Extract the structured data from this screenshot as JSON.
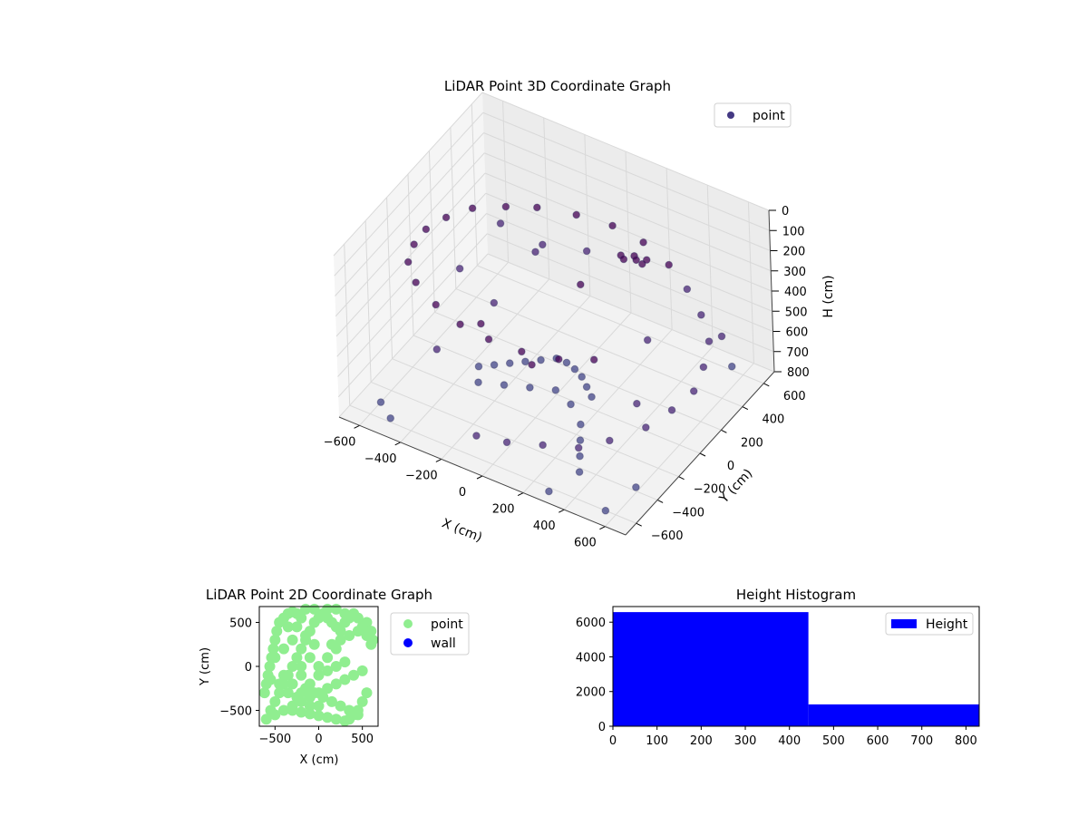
{
  "chart_data": [
    {
      "type": "scatter",
      "projection": "3d",
      "title": "LiDAR Point 3D Coordinate Graph",
      "xlabel": "X (cm)",
      "ylabel": "Y (cm)",
      "zlabel": "H (cm)",
      "xlim": [
        -700,
        700
      ],
      "ylim": [
        -700,
        700
      ],
      "zlim": [
        800,
        0
      ],
      "xticks": [
        "−600",
        "−400",
        "−200",
        "0",
        "200",
        "400",
        "600"
      ],
      "yticks": [
        "−600",
        "−400",
        "−200",
        "0",
        "200",
        "400",
        "600"
      ],
      "zticks": [
        "0",
        "100",
        "200",
        "300",
        "400",
        "500",
        "600",
        "700",
        "800"
      ],
      "grid": true,
      "legend": {
        "position": "top-right",
        "entries": [
          {
            "label": "point",
            "color": "#443983"
          }
        ]
      },
      "colormap": "viridis",
      "series": [
        {
          "name": "point",
          "description_points": "spiral ramp from H≈700 to H≈180 around centre, dense cluster near H≈700, sparse scatter",
          "points": [
            [
              -300,
              -150,
              700
            ],
            [
              -250,
              -100,
              700
            ],
            [
              -200,
              -50,
              700
            ],
            [
              -150,
              0,
              700
            ],
            [
              -100,
              50,
              700
            ],
            [
              -50,
              100,
              700
            ],
            [
              0,
              100,
              700
            ],
            [
              50,
              80,
              700
            ],
            [
              100,
              50,
              700
            ],
            [
              150,
              0,
              700
            ],
            [
              200,
              -50,
              700
            ],
            [
              -250,
              -250,
              700
            ],
            [
              -150,
              -200,
              700
            ],
            [
              -50,
              -150,
              700
            ],
            [
              50,
              -100,
              700
            ],
            [
              150,
              -150,
              700
            ],
            [
              250,
              -250,
              700
            ],
            [
              300,
              -350,
              700
            ],
            [
              350,
              -450,
              700
            ],
            [
              400,
              -550,
              700
            ],
            [
              -50,
              -650,
              650
            ],
            [
              100,
              -650,
              620
            ],
            [
              250,
              -600,
              600
            ],
            [
              400,
              -550,
              580
            ],
            [
              500,
              -450,
              560
            ],
            [
              600,
              -300,
              540
            ],
            [
              650,
              -150,
              520
            ],
            [
              680,
              0,
              500
            ],
            [
              650,
              150,
              480
            ],
            [
              600,
              300,
              460
            ],
            [
              500,
              420,
              440
            ],
            [
              380,
              520,
              420
            ],
            [
              250,
              600,
              400
            ],
            [
              100,
              650,
              380
            ],
            [
              -50,
              650,
              360
            ],
            [
              -200,
              600,
              340
            ],
            [
              -350,
              520,
              320
            ],
            [
              -450,
              420,
              300
            ],
            [
              -550,
              300,
              280
            ],
            [
              -600,
              150,
              260
            ],
            [
              -620,
              0,
              240
            ],
            [
              -600,
              -150,
              220
            ],
            [
              -550,
              -300,
              200
            ],
            [
              -450,
              -420,
              190
            ],
            [
              -300,
              -520,
              180
            ],
            [
              -150,
              -580,
              180
            ],
            [
              0,
              -600,
              180
            ],
            [
              150,
              -580,
              190
            ],
            [
              300,
              -520,
              200
            ],
            [
              420,
              -420,
              210
            ],
            [
              150,
              350,
              250
            ],
            [
              200,
              380,
              250
            ],
            [
              250,
              400,
              260
            ],
            [
              180,
              320,
              240
            ],
            [
              220,
              360,
              250
            ],
            [
              -600,
              -500,
              800
            ],
            [
              -500,
              -600,
              780
            ],
            [
              600,
              500,
              700
            ],
            [
              500,
              600,
              650
            ],
            [
              -400,
              650,
              600
            ],
            [
              -650,
              350,
              650
            ],
            [
              300,
              -650,
              780
            ],
            [
              650,
              -500,
              700
            ],
            [
              -550,
              550,
              500
            ],
            [
              550,
              -600,
              800
            ],
            [
              -300,
              400,
              450
            ],
            [
              -100,
              500,
              420
            ],
            [
              100,
              -400,
              380
            ],
            [
              -200,
              -300,
              360
            ],
            [
              350,
              200,
              500
            ],
            [
              -350,
              100,
              550
            ],
            [
              450,
              -100,
              600
            ],
            [
              -450,
              -250,
              620
            ],
            [
              200,
              450,
              330
            ],
            [
              0,
              250,
              400
            ]
          ]
        }
      ]
    },
    {
      "type": "scatter",
      "title": "LiDAR Point 2D Coordinate Graph",
      "xlabel": "X (cm)",
      "ylabel": "Y (cm)",
      "xlim": [
        -680,
        680
      ],
      "ylim": [
        -680,
        680
      ],
      "xticks": [
        "−500",
        "0",
        "500"
      ],
      "yticks": [
        "−500",
        "0",
        "500"
      ],
      "legend": {
        "position": "right",
        "entries": [
          {
            "label": "point",
            "color": "#90ee90"
          },
          {
            "label": "wall",
            "color": "#0000ff"
          }
        ]
      },
      "series": [
        {
          "name": "point",
          "color": "#90ee90",
          "points": [
            [
              -600,
              -600
            ],
            [
              -550,
              -500
            ],
            [
              -500,
              -400
            ],
            [
              -450,
              -300
            ],
            [
              -400,
              -200
            ],
            [
              -350,
              -100
            ],
            [
              -300,
              0
            ],
            [
              -250,
              100
            ],
            [
              -200,
              200
            ],
            [
              -150,
              300
            ],
            [
              -100,
              400
            ],
            [
              -50,
              500
            ],
            [
              0,
              550
            ],
            [
              50,
              600
            ],
            [
              100,
              550
            ],
            [
              150,
              500
            ],
            [
              200,
              450
            ],
            [
              250,
              400
            ],
            [
              300,
              500
            ],
            [
              350,
              550
            ],
            [
              400,
              600
            ],
            [
              450,
              550
            ],
            [
              500,
              450
            ],
            [
              550,
              500
            ],
            [
              600,
              400
            ],
            [
              620,
              300
            ],
            [
              -620,
              -300
            ],
            [
              -600,
              -200
            ],
            [
              -580,
              -100
            ],
            [
              -560,
              0
            ],
            [
              -540,
              100
            ],
            [
              -520,
              200
            ],
            [
              -500,
              300
            ],
            [
              -480,
              400
            ],
            [
              -450,
              500
            ],
            [
              -400,
              550
            ],
            [
              -350,
              600
            ],
            [
              -300,
              620
            ],
            [
              -250,
              600
            ],
            [
              -200,
              550
            ],
            [
              -500,
              -550
            ],
            [
              -400,
              -500
            ],
            [
              -300,
              -450
            ],
            [
              -200,
              -400
            ],
            [
              -100,
              -350
            ],
            [
              0,
              -300
            ],
            [
              100,
              -250
            ],
            [
              200,
              -200
            ],
            [
              300,
              -150
            ],
            [
              400,
              -100
            ],
            [
              500,
              -50
            ],
            [
              550,
              -300
            ],
            [
              500,
              -400
            ],
            [
              450,
              -500
            ],
            [
              400,
              -550
            ],
            [
              350,
              -600
            ],
            [
              300,
              -620
            ],
            [
              200,
              -600
            ],
            [
              100,
              -580
            ],
            [
              0,
              -560
            ],
            [
              -100,
              -540
            ],
            [
              -200,
              -520
            ],
            [
              -300,
              -500
            ],
            [
              -400,
              -100
            ],
            [
              -300,
              -200
            ],
            [
              -200,
              -300
            ],
            [
              -100,
              -200
            ],
            [
              0,
              -100
            ],
            [
              100,
              -50
            ],
            [
              200,
              0
            ],
            [
              300,
              50
            ],
            [
              -200,
              0
            ],
            [
              -100,
              100
            ],
            [
              0,
              0
            ],
            [
              100,
              100
            ],
            [
              200,
              200
            ],
            [
              -300,
              300
            ],
            [
              -400,
              200
            ],
            [
              -500,
              100
            ],
            [
              -200,
              -100
            ],
            [
              -150,
              -250
            ],
            [
              -50,
              -300
            ],
            [
              50,
              -350
            ],
            [
              150,
              -400
            ],
            [
              250,
              -450
            ],
            [
              350,
              -500
            ],
            [
              450,
              -550
            ],
            [
              0,
              -450
            ],
            [
              -100,
              -450
            ],
            [
              -250,
              -350
            ],
            [
              -350,
              -300
            ],
            [
              -450,
              -200
            ],
            [
              -550,
              -150
            ],
            [
              150,
              250
            ],
            [
              250,
              300
            ],
            [
              350,
              350
            ],
            [
              450,
              400
            ],
            [
              550,
              350
            ],
            [
              600,
              250
            ],
            [
              -50,
              250
            ],
            [
              -150,
              350
            ],
            [
              -250,
              450
            ],
            [
              -350,
              450
            ],
            [
              300,
              600
            ],
            [
              200,
              650
            ],
            [
              100,
              650
            ],
            [
              -50,
              650
            ],
            [
              -150,
              650
            ]
          ]
        },
        {
          "name": "wall",
          "color": "#0000ff",
          "points": []
        }
      ]
    },
    {
      "type": "bar",
      "subtype": "histogram",
      "title": "Height Histogram",
      "xlim": [
        0,
        830
      ],
      "ylim": [
        0,
        6900
      ],
      "xticks": [
        "0",
        "100",
        "200",
        "300",
        "400",
        "500",
        "600",
        "700",
        "800"
      ],
      "yticks": [
        "0",
        "2000",
        "4000",
        "6000"
      ],
      "legend": {
        "position": "top-right",
        "entries": [
          {
            "label": "Height",
            "color": "#0000ff"
          }
        ]
      },
      "bins": [
        {
          "from": 0,
          "to": 443,
          "count": 6580
        },
        {
          "from": 443,
          "to": 830,
          "count": 1260
        }
      ],
      "color": "#0000ff"
    }
  ]
}
